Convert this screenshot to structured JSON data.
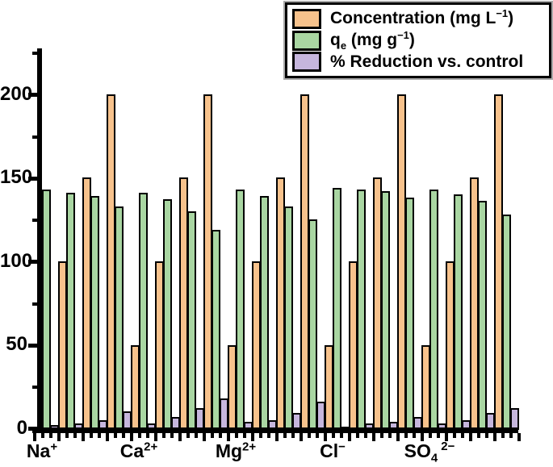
{
  "legend": {
    "items": [
      {
        "key": "concentration",
        "pre": "Concentration (mg L",
        "sup": "−1",
        "post": ")",
        "color": "#F7C28C"
      },
      {
        "key": "qe",
        "pre": "q",
        "sub": "e",
        "mid": " (mg g",
        "sup": "−1",
        "post": ")",
        "color": "#A9D6A2"
      },
      {
        "key": "reduction",
        "pre": "% Reduction vs. control",
        "color": "#C6B6DD"
      }
    ]
  },
  "y_axis": {
    "tick_labels": [
      "200",
      "150",
      "100",
      "50",
      "0"
    ]
  },
  "x_axis": {
    "labels": [
      {
        "base": "Na",
        "sup": "+"
      },
      {
        "base": "Ca",
        "sup": "2+"
      },
      {
        "base": "Mg",
        "sup": "2+"
      },
      {
        "base": "Cl",
        "sup": "−"
      },
      {
        "base": "SO",
        "sub": "4",
        "sup": "2−"
      }
    ]
  },
  "chart_data": {
    "type": "bar",
    "title": "",
    "xlabel": "",
    "ylabel": "",
    "groups": [
      "Na+",
      "Ca2+",
      "Mg2+",
      "Cl−",
      "SO4 2−"
    ],
    "concentration_levels_mg_per_L": [
      50,
      100,
      150,
      200
    ],
    "series": [
      {
        "name": "Concentration (mg L−1)",
        "color": "#F7C28C",
        "values": [
          [
            50,
            100,
            150,
            200
          ],
          [
            50,
            100,
            150,
            200
          ],
          [
            50,
            100,
            150,
            200
          ],
          [
            50,
            100,
            150,
            200
          ],
          [
            50,
            100,
            150,
            200
          ]
        ]
      },
      {
        "name": "qe (mg g−1)",
        "color": "#A9D6A2",
        "values": [
          [
            143,
            141,
            139,
            133
          ],
          [
            141,
            137,
            130,
            119
          ],
          [
            143,
            139,
            133,
            125
          ],
          [
            144,
            143,
            142,
            138
          ],
          [
            143,
            140,
            136,
            128
          ]
        ]
      },
      {
        "name": "% Reduction vs. control",
        "color": "#C6B6DD",
        "values": [
          [
            2,
            3,
            5,
            10
          ],
          [
            3,
            7,
            12,
            18
          ],
          [
            4,
            5,
            9,
            16
          ],
          [
            1,
            3,
            4,
            7
          ],
          [
            3,
            5,
            9,
            12
          ]
        ]
      }
    ],
    "ylim": [
      0,
      225
    ],
    "yticks": [
      0,
      50,
      100,
      150,
      200
    ],
    "y_minor_ticks": [
      25,
      75,
      125,
      175,
      225
    ],
    "grid": false,
    "legend_position": "top-right"
  }
}
